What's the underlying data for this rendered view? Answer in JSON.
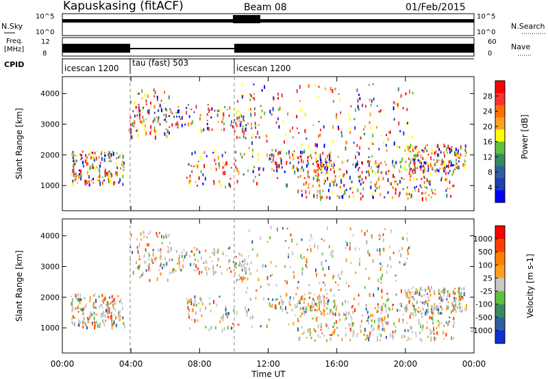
{
  "header": {
    "station": "Kapuskasing (fitACF)",
    "beam": "Beam 08",
    "date": "01/Feb/2015"
  },
  "strips": {
    "nsky_label": "N.Sky",
    "nsky_ticks": [
      "10^5",
      "10^0"
    ],
    "nsearch_label": "N.Search",
    "nsearch_ticks": [
      "10^5",
      "10^0"
    ],
    "freq_label_1": "Freq.",
    "freq_label_2": "[MHz]",
    "freq_ticks": [
      "12",
      "8"
    ],
    "nave_label": "Nave",
    "nave_ticks": [
      "60",
      "0"
    ],
    "cpid_label": "CPID",
    "cpid_segments": [
      {
        "label": "icescan 1200",
        "start_hour": 0
      },
      {
        "label": "tau (fast) 503",
        "start_hour": 4
      },
      {
        "label": "icescan 1200",
        "start_hour": 10
      }
    ]
  },
  "chart_data": [
    {
      "type": "heatmap",
      "title": "",
      "ylabel": "Slant Range [km]",
      "xlabel": "Time UT",
      "xlim": [
        0,
        24
      ],
      "ylim": [
        180,
        4550
      ],
      "x_ticks": [
        "00:00",
        "04:00",
        "08:00",
        "12:00",
        "16:00",
        "20:00",
        "00:00"
      ],
      "y_ticks": [
        "1000",
        "2000",
        "3000",
        "4000"
      ],
      "colorbar": {
        "label": "Power [dB]",
        "ticks": [
          "28",
          "24",
          "20",
          "16",
          "12",
          "8",
          "4"
        ],
        "colors": [
          "#0000ff",
          "#2040b0",
          "#3060a0",
          "#3a8a60",
          "#60c040",
          "#ffff00",
          "#ffa020",
          "#ff7000",
          "#ff3030",
          "#ff0000"
        ]
      }
    },
    {
      "type": "heatmap",
      "title": "",
      "ylabel": "Slant Range [km]",
      "xlabel": "Time UT",
      "xlim": [
        0,
        24
      ],
      "ylim": [
        180,
        4550
      ],
      "x_ticks": [
        "00:00",
        "04:00",
        "08:00",
        "12:00",
        "16:00",
        "20:00",
        "00:00"
      ],
      "y_ticks": [
        "1000",
        "2000",
        "3000",
        "4000"
      ],
      "colorbar": {
        "label": "Velocity [m s-1]",
        "ticks": [
          "1000",
          "500",
          "100",
          "25",
          "-25",
          "-100",
          "-500",
          "-1000"
        ],
        "colors": [
          "#1030d0",
          "#3060a0",
          "#3a8a60",
          "#60c040",
          "#c8c8c8",
          "#ffa020",
          "#ff8000",
          "#ff4000",
          "#ff0000"
        ]
      }
    }
  ]
}
